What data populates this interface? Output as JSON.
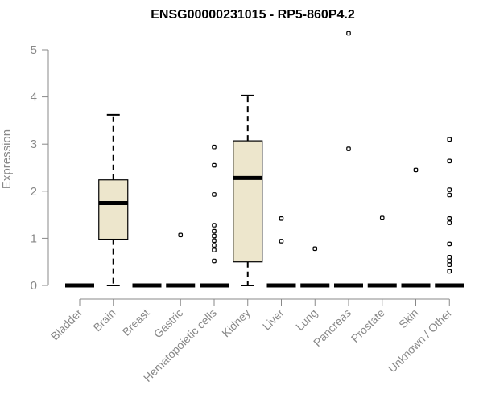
{
  "chart_data": {
    "type": "box",
    "title": "ENSG00000231015 - RP5-860P4.2",
    "xlabel": "",
    "ylabel": "Expression",
    "ylim": [
      0,
      5.4
    ],
    "yticks": [
      "0",
      "1",
      "2",
      "3",
      "4",
      "5"
    ],
    "grid": false,
    "box_fill": "#ede6cc",
    "categories": [
      "Bladder",
      "Brain",
      "Breast",
      "Gastric",
      "Hematopoietic cells",
      "Kidney",
      "Liver",
      "Lung",
      "Pancreas",
      "Prostate",
      "Skin",
      "Unknown / Other"
    ],
    "boxes": [
      {
        "category": "Bladder",
        "min": 0,
        "q1": 0,
        "median": 0,
        "q3": 0,
        "max": 0,
        "outliers": []
      },
      {
        "category": "Brain",
        "min": 0,
        "q1": 0.98,
        "median": 1.75,
        "q3": 2.24,
        "max": 3.62,
        "outliers": []
      },
      {
        "category": "Breast",
        "min": 0,
        "q1": 0,
        "median": 0,
        "q3": 0,
        "max": 0,
        "outliers": []
      },
      {
        "category": "Gastric",
        "min": 0,
        "q1": 0,
        "median": 0,
        "q3": 0,
        "max": 0,
        "outliers": [
          1.07
        ]
      },
      {
        "category": "Hematopoietic cells",
        "min": 0,
        "q1": 0,
        "median": 0,
        "q3": 0,
        "max": 0,
        "outliers": [
          2.94,
          2.55,
          1.93,
          1.28,
          1.15,
          1.05,
          0.95,
          0.85,
          0.75,
          0.52
        ]
      },
      {
        "category": "Kidney",
        "min": 0,
        "q1": 0.5,
        "median": 2.28,
        "q3": 3.07,
        "max": 4.03,
        "outliers": []
      },
      {
        "category": "Liver",
        "min": 0,
        "q1": 0,
        "median": 0,
        "q3": 0,
        "max": 0,
        "outliers": [
          1.42,
          0.94
        ]
      },
      {
        "category": "Lung",
        "min": 0,
        "q1": 0,
        "median": 0,
        "q3": 0,
        "max": 0,
        "outliers": [
          0.78
        ]
      },
      {
        "category": "Pancreas",
        "min": 0,
        "q1": 0,
        "median": 0,
        "q3": 0,
        "max": 0,
        "outliers": [
          5.35,
          2.9
        ]
      },
      {
        "category": "Prostate",
        "min": 0,
        "q1": 0,
        "median": 0,
        "q3": 0,
        "max": 0,
        "outliers": [
          1.43
        ]
      },
      {
        "category": "Skin",
        "min": 0,
        "q1": 0,
        "median": 0,
        "q3": 0,
        "max": 0,
        "outliers": [
          2.45
        ]
      },
      {
        "category": "Unknown / Other",
        "min": 0,
        "q1": 0,
        "median": 0,
        "q3": 0,
        "max": 0,
        "outliers": [
          3.1,
          2.64,
          2.03,
          1.92,
          1.42,
          1.33,
          0.88,
          0.6,
          0.52,
          0.44,
          0.3
        ]
      }
    ]
  }
}
